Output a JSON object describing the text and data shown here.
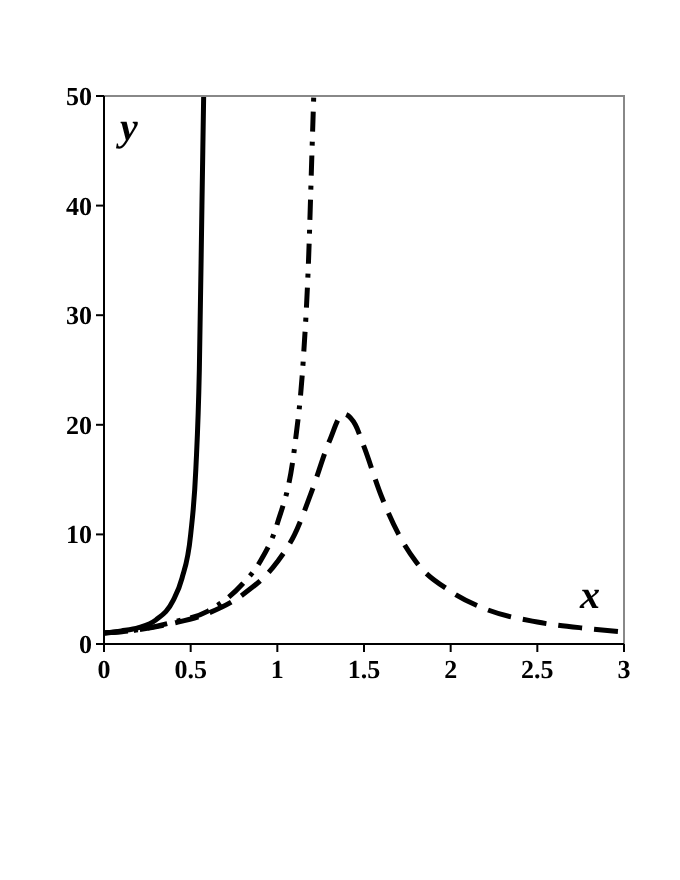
{
  "chart_data": {
    "type": "line",
    "xlabel": "x",
    "ylabel": "y",
    "xlim": [
      0,
      3
    ],
    "ylim": [
      0,
      50
    ],
    "xticks": [
      0,
      0.5,
      1,
      1.5,
      2,
      2.5,
      3
    ],
    "yticks": [
      0,
      10,
      20,
      30,
      40,
      50
    ],
    "grid": false,
    "series": [
      {
        "color": "#000000",
        "line_style": "solid",
        "x": [
          0,
          0.1,
          0.2,
          0.3,
          0.4,
          0.45,
          0.5,
          0.53,
          0.55,
          0.565,
          0.575
        ],
        "values": [
          1,
          1.2,
          1.5,
          2.2,
          4,
          6,
          10,
          16,
          25,
          40,
          50
        ]
      },
      {
        "color": "#000000",
        "line_style": "dashdot",
        "x": [
          0,
          0.2,
          0.4,
          0.6,
          0.8,
          0.9,
          1,
          1.1,
          1.15,
          1.18,
          1.2,
          1.21
        ],
        "values": [
          1,
          1.3,
          2,
          3,
          5.5,
          7.5,
          11,
          18,
          26,
          35,
          45,
          50
        ]
      },
      {
        "color": "#000000",
        "line_style": "dashed",
        "x": [
          0,
          0.2,
          0.4,
          0.6,
          0.8,
          1,
          1.1,
          1.2,
          1.3,
          1.38,
          1.45,
          1.5,
          1.6,
          1.7,
          1.8,
          2,
          2.2,
          2.5,
          2.8,
          3
        ],
        "values": [
          1,
          1.3,
          1.9,
          2.8,
          4.5,
          7.5,
          10,
          14,
          18.5,
          21,
          20,
          18,
          13.5,
          10,
          7.5,
          4.8,
          3.2,
          2,
          1.4,
          1.1
        ]
      }
    ]
  }
}
